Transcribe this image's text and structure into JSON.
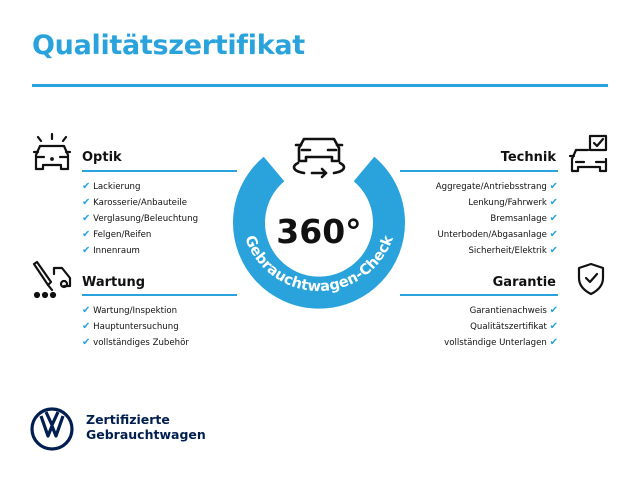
{
  "title": "Qualitätszertifikat",
  "center": {
    "degrees": "360°",
    "arc_text": "Gebrauchtwagen-Check"
  },
  "sections": {
    "optik": {
      "title": "Optik",
      "icon": "car-lights-icon",
      "items": [
        "Lackierung",
        "Karosserie/Anbauteile",
        "Verglasung/Beleuchtung",
        "Felgen/Reifen",
        "Innenraum"
      ]
    },
    "wartung": {
      "title": "Wartung",
      "icon": "maintenance-truck-icon",
      "items": [
        "Wartung/Inspektion",
        "Hauptuntersuchung",
        "vollständiges Zubehör"
      ]
    },
    "technik": {
      "title": "Technik",
      "icon": "car-checklist-icon",
      "items": [
        "Aggregate/Antriebsstrang",
        "Lenkung/Fahrwerk",
        "Bremsanlage",
        "Unterboden/Abgasanlage",
        "Sicherheit/Elektrik"
      ]
    },
    "garantie": {
      "title": "Garantie",
      "icon": "shield-check-icon",
      "items": [
        "Garantienachweis",
        "Qualitätszertifikat",
        "vollständige Unterlagen"
      ]
    }
  },
  "brand": {
    "line1": "Zertifizierte",
    "line2": "Gebrauchtwagen"
  },
  "colors": {
    "accent": "#2aa3dc",
    "brand_navy": "#001e50"
  }
}
